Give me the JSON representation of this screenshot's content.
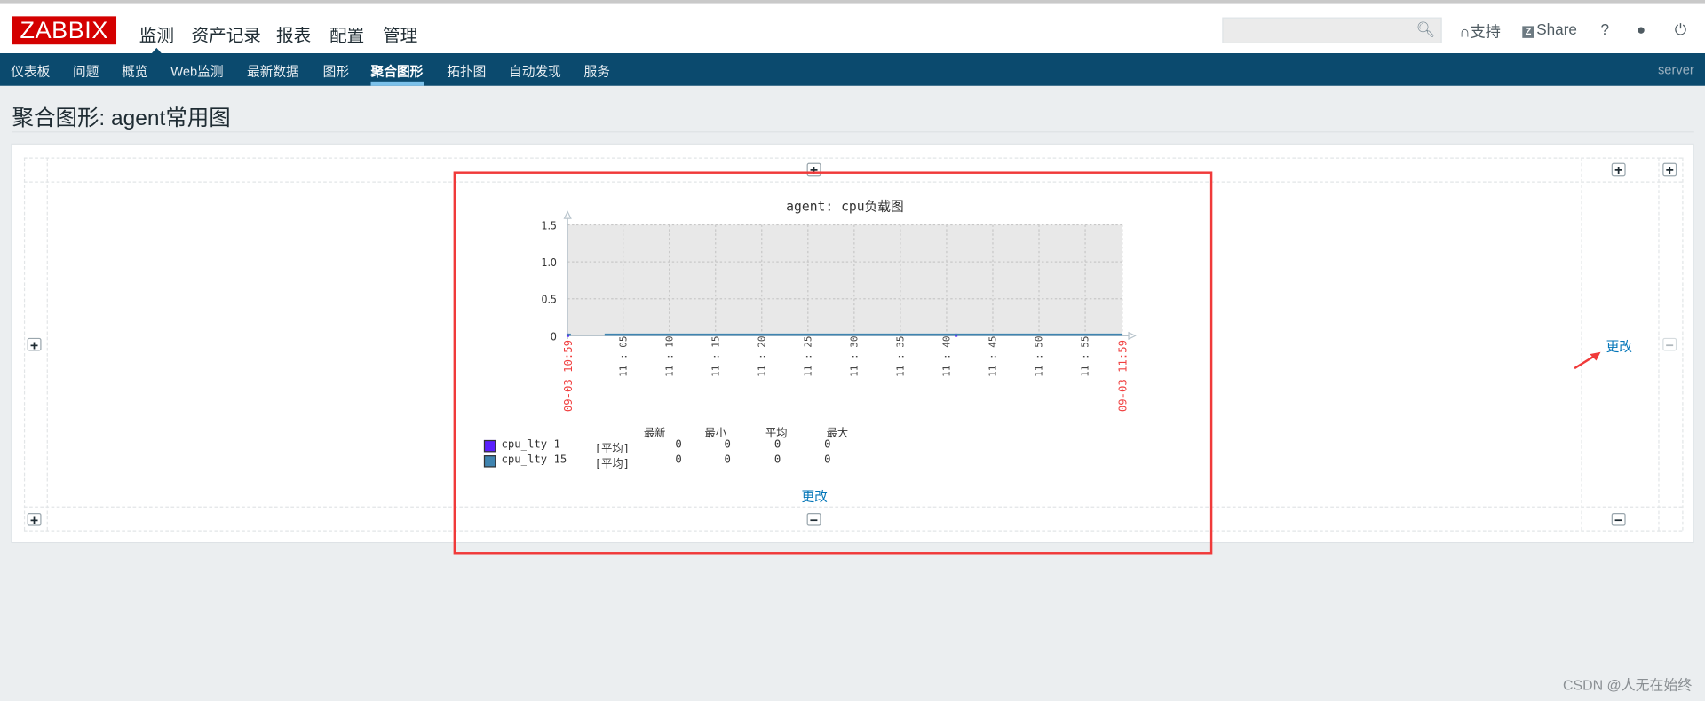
{
  "header": {
    "logo": "ZABBIX",
    "main_menu": [
      "监测",
      "资产记录",
      "报表",
      "配置",
      "管理"
    ],
    "search": {
      "value": "",
      "placeholder": ""
    },
    "support": "支持",
    "share": "Share",
    "help": "?",
    "icons": [
      "search-icon",
      "headset-icon",
      "zabbix-share-icon",
      "help-icon",
      "user-icon",
      "power-icon"
    ]
  },
  "nav": {
    "items": [
      "仪表板",
      "问题",
      "概览",
      "Web监测",
      "最新数据",
      "图形",
      "聚合图形",
      "拓扑图",
      "自动发现",
      "服务"
    ],
    "active": "聚合图形",
    "server": "server"
  },
  "page": {
    "title": "聚合图形: agent常用图"
  },
  "screen": {
    "change_link": "更改",
    "change_link_right": "更改"
  },
  "chart_data": {
    "type": "line",
    "title": "agent: cpu负载图",
    "ylim": [
      0,
      1.5
    ],
    "yticks": [
      "1.5",
      "1.0",
      "0.5",
      "0"
    ],
    "x_start_label": "09-03 10:59",
    "x_end_label": "09-03 11:59",
    "xticks": [
      "11:05",
      "11:10",
      "11:15",
      "11:20",
      "11:25",
      "11:30",
      "11:35",
      "11:40",
      "11:45",
      "11:50",
      "11:55"
    ],
    "grid": true,
    "background": "#e8e8e8",
    "series": [
      {
        "name": "cpu_lty 1",
        "func": "[平均]",
        "color": "#5b1fff",
        "last": "0",
        "min": "0",
        "avg": "0",
        "max": "0",
        "points": [
          [
            "10:59",
            0
          ],
          [
            "11:41",
            0
          ]
        ]
      },
      {
        "name": "cpu_lty 15",
        "func": "[平均]",
        "color": "#3f84b0",
        "last": "0",
        "min": "0",
        "avg": "0",
        "max": "0",
        "points": [
          [
            "10:59",
            0
          ],
          [
            "11:03",
            0
          ],
          [
            "11:59",
            0
          ]
        ]
      }
    ],
    "legend_headers": [
      "最新",
      "最小",
      "平均",
      "最大"
    ]
  },
  "watermark": "CSDN @人无在始终",
  "colors": {
    "nav": "#0b4a6e",
    "logo": "#d40000",
    "link": "#0275b8",
    "annotation": "#f03a3a"
  }
}
